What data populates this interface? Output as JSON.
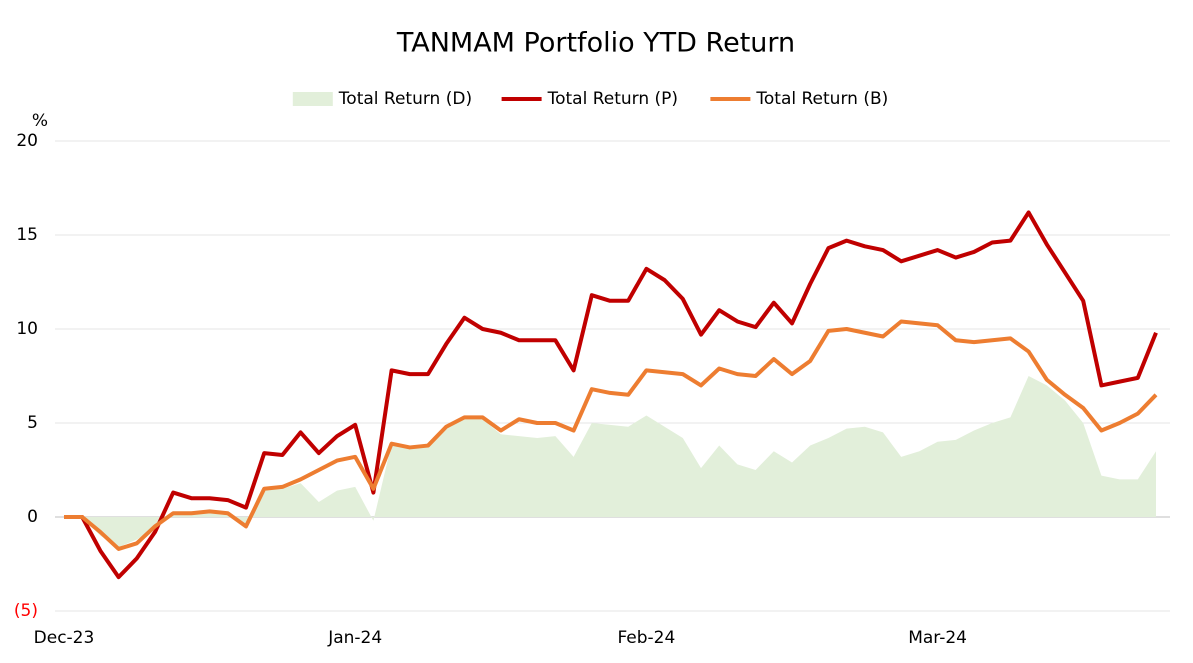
{
  "chart_data": {
    "type": "line",
    "title": "TANMAM Portfolio YTD Return",
    "ylabel": "%",
    "categories": [
      "Dec-23",
      null,
      null,
      null,
      null,
      null,
      null,
      null,
      null,
      null,
      null,
      null,
      null,
      null,
      null,
      null,
      "Jan-24",
      null,
      null,
      null,
      null,
      null,
      null,
      null,
      null,
      null,
      null,
      null,
      null,
      null,
      null,
      null,
      "Feb-24",
      null,
      null,
      null,
      null,
      null,
      null,
      null,
      null,
      null,
      null,
      null,
      null,
      null,
      null,
      null,
      "Mar-24",
      null,
      null,
      null,
      null,
      null,
      null,
      null,
      null,
      null,
      null,
      null,
      null
    ],
    "series": [
      {
        "name": "Total Return (D)",
        "kind": "area",
        "color": "#e2efda",
        "values": [
          0,
          0,
          -1,
          -1.6,
          -1.2,
          -0.6,
          0.3,
          0.3,
          0.3,
          0.2,
          -0.4,
          1.5,
          1.5,
          1.8,
          0.8,
          1.4,
          1.6,
          -0.2,
          3.9,
          3.7,
          3.8,
          4.8,
          5.3,
          5.2,
          4.4,
          4.3,
          4.2,
          4.3,
          3.2,
          5.0,
          4.9,
          4.8,
          5.4,
          4.8,
          4.2,
          2.6,
          3.8,
          2.8,
          2.5,
          3.5,
          2.9,
          3.8,
          4.2,
          4.7,
          4.8,
          4.5,
          3.2,
          3.5,
          4.0,
          4.1,
          4.6,
          5.0,
          5.3,
          7.5,
          7.0,
          6.2,
          5.0,
          2.2,
          2.0,
          2.0,
          3.5
        ]
      },
      {
        "name": "Total Return (P)",
        "kind": "line",
        "color": "#c00000",
        "values": [
          0,
          0,
          -1.8,
          -3.2,
          -2.2,
          -0.8,
          1.3,
          1.0,
          1.0,
          0.9,
          0.5,
          3.4,
          3.3,
          4.5,
          3.4,
          4.3,
          4.9,
          1.3,
          7.8,
          7.6,
          7.6,
          9.2,
          10.6,
          10.0,
          9.8,
          9.4,
          9.4,
          9.4,
          7.8,
          11.8,
          11.5,
          11.5,
          13.2,
          12.6,
          11.6,
          9.7,
          11.0,
          10.4,
          10.1,
          11.4,
          10.3,
          12.4,
          14.3,
          14.7,
          14.4,
          14.2,
          13.6,
          13.9,
          14.2,
          13.8,
          14.1,
          14.6,
          14.7,
          16.2,
          14.5,
          13.0,
          11.5,
          7.0,
          7.2,
          7.4,
          9.8
        ]
      },
      {
        "name": "Total Return (B)",
        "kind": "line",
        "color": "#ed7d31",
        "values": [
          0,
          0,
          -0.8,
          -1.7,
          -1.4,
          -0.5,
          0.2,
          0.2,
          0.3,
          0.2,
          -0.5,
          1.5,
          1.6,
          2.0,
          2.5,
          3.0,
          3.2,
          1.5,
          3.9,
          3.7,
          3.8,
          4.8,
          5.3,
          5.3,
          4.6,
          5.2,
          5.0,
          5.0,
          4.6,
          6.8,
          6.6,
          6.5,
          7.8,
          7.7,
          7.6,
          7.0,
          7.9,
          7.6,
          7.5,
          8.4,
          7.6,
          8.3,
          9.9,
          10.0,
          9.8,
          9.6,
          10.4,
          10.3,
          10.2,
          9.4,
          9.3,
          9.4,
          9.5,
          8.8,
          7.3,
          6.5,
          5.8,
          4.6,
          5.0,
          5.5,
          6.5
        ]
      }
    ],
    "ylim": [
      -5,
      20
    ],
    "yticks": [
      {
        "value": -5,
        "label": "(5)"
      },
      0,
      5,
      10,
      15,
      20
    ],
    "grid": true,
    "legend": "top"
  }
}
